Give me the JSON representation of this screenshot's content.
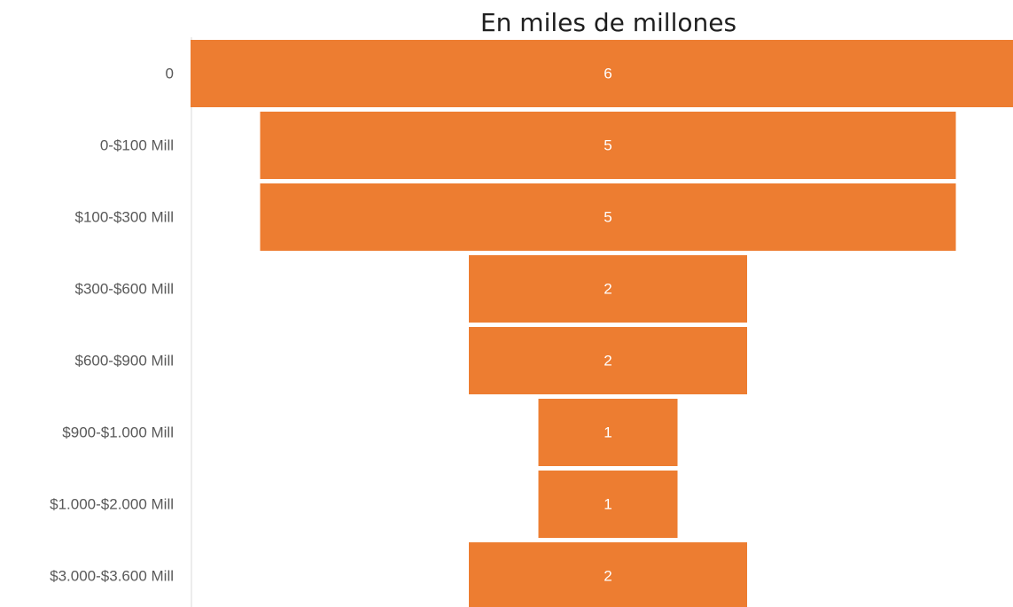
{
  "chart_data": {
    "type": "bar",
    "subtype": "funnel",
    "title": "En miles de millones",
    "categories": [
      "0",
      "0-$100 Mill",
      "$100-$300 Mill",
      "$300-$600 Mill",
      "$600-$900 Mill",
      "$900-$1.000 Mill",
      "$1.000-$2.000 Mill",
      "$3.000-$3.600 Mill"
    ],
    "values": [
      6,
      5,
      5,
      2,
      2,
      1,
      1,
      2
    ],
    "data_labels": [
      "6",
      "5",
      "5",
      "2",
      "2",
      "1",
      "1",
      "2"
    ],
    "grid": false,
    "legend": "none"
  },
  "colors": {
    "bar": "#ED7D31",
    "label_text": "#ffffff",
    "category_text": "#595959",
    "axis_line": "#d9d9d9"
  }
}
